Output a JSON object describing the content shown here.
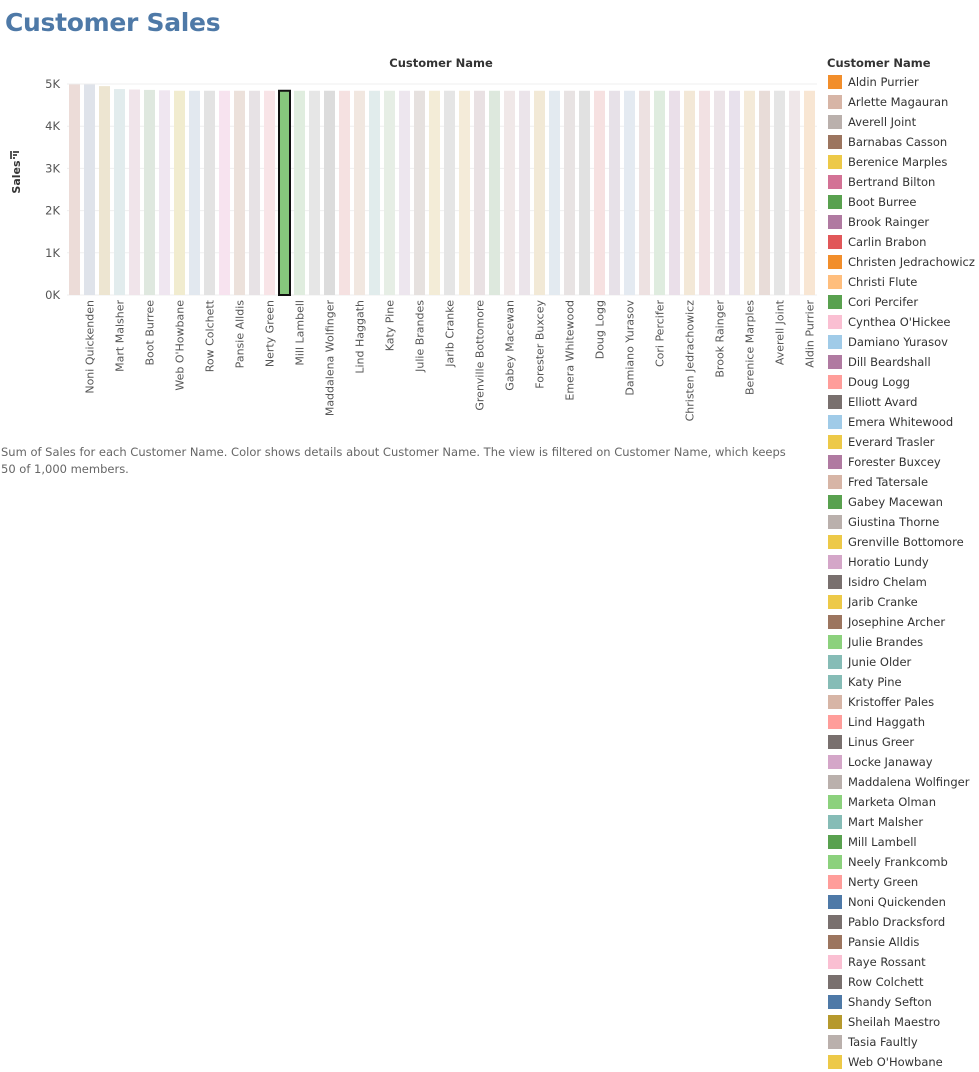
{
  "title": "Customer Sales",
  "caption": "Sum of Sales for each Customer Name.  Color shows details about Customer Name. The view is filtered on Customer Name, which keeps 50 of 1,000 members.",
  "chart_data": {
    "type": "bar",
    "title": "Customer Name",
    "xlabel": "",
    "ylabel": "Sales",
    "ylim": [
      0,
      5000
    ],
    "yticks": [
      "0K",
      "1K",
      "2K",
      "3K",
      "4K",
      "5K"
    ],
    "ytick_values": [
      0,
      1000,
      2000,
      3000,
      4000,
      5000
    ],
    "grid": true,
    "categories": [
      "",
      "Noni Quickenden",
      "",
      "Mart Malsher",
      "",
      "Boot Burree",
      "",
      "Web O'Howbane",
      "",
      "Row Colchett",
      "",
      "Pansie Alldis",
      "",
      "Nerty Green",
      "",
      "Mill Lambell",
      "",
      "Maddalena Wolfinger",
      "",
      "Lind Haggath",
      "",
      "Katy Pine",
      "",
      "Julie Brandes",
      "",
      "Jarib Cranke",
      "",
      "Grenville Bottomore",
      "",
      "Gabey Macewan",
      "",
      "Forester Buxcey",
      "",
      "Emera Whitewood",
      "",
      "Doug Logg",
      "",
      "Damiano Yurasov",
      "",
      "Cori Percifer",
      "",
      "Christen Jedrachowicz",
      "",
      "Brook Rainger",
      "",
      "Berenice Marples",
      "",
      "Averell Joint",
      "",
      "Aldin Purrier"
    ],
    "values": [
      4990,
      4990,
      4950,
      4880,
      4870,
      4860,
      4850,
      4840,
      4840,
      4840,
      4840,
      4840,
      4840,
      4840,
      4840,
      4840,
      4840,
      4840,
      4840,
      4840,
      4840,
      4840,
      4840,
      4840,
      4840,
      4840,
      4840,
      4840,
      4840,
      4840,
      4840,
      4840,
      4840,
      4840,
      4840,
      4840,
      4840,
      4840,
      4840,
      4840,
      4840,
      4840,
      4840,
      4840,
      4840,
      4840,
      4840,
      4840,
      4840,
      4840
    ],
    "colors": [
      "#ecdcd8",
      "#dfe3ea",
      "#ede5d1",
      "#e2eced",
      "#f0e4ea",
      "#dfe8df",
      "#efe6f0",
      "#f1eccf",
      "#e2e8ef",
      "#e3e3e3",
      "#f7e3ef",
      "#ece1db",
      "#e7e2e5",
      "#f8e4e7",
      "#86c77c",
      "#e0eddf",
      "#e6e6e6",
      "#dcdcdc",
      "#f5e1e1",
      "#f1e7e0",
      "#e1ecec",
      "#e6eee5",
      "#ede6ee",
      "#e6e1df",
      "#f3ecd7",
      "#e5e5e5",
      "#f4ebd9",
      "#e9e1e3",
      "#dde8dd",
      "#f0e8e8",
      "#ebe4ea",
      "#f2e9d6",
      "#e3eaf0",
      "#e8e3e3",
      "#e1e1e1",
      "#f6e1e1",
      "#e7e1e8",
      "#e4eaf1",
      "#ede1e1",
      "#dfecdf",
      "#eadfe9",
      "#f3e8d7",
      "#f2e1e3",
      "#ece4e8",
      "#e8e1ec",
      "#f4ead9",
      "#e8dcd8",
      "#e5e5e5",
      "#efe7e9",
      "#f8e6d3"
    ],
    "highlight_index": 14
  },
  "legend": {
    "title": "Customer Name",
    "items": [
      {
        "label": "Aldin Purrier",
        "color": "#f28e2b"
      },
      {
        "label": "Arlette Magauran",
        "color": "#d7b5a6"
      },
      {
        "label": "Averell Joint",
        "color": "#bab0ac"
      },
      {
        "label": "Barnabas Casson",
        "color": "#9c755f"
      },
      {
        "label": "Berenice Marples",
        "color": "#edc948"
      },
      {
        "label": "Bertrand Bilton",
        "color": "#d37295"
      },
      {
        "label": "Boot Burree",
        "color": "#59a14f"
      },
      {
        "label": "Brook Rainger",
        "color": "#b07aa1"
      },
      {
        "label": "Carlin Brabon",
        "color": "#e15759"
      },
      {
        "label": "Christen Jedrachowicz",
        "color": "#f28e2b"
      },
      {
        "label": "Christi Flute",
        "color": "#ffbe7d"
      },
      {
        "label": "Cori Percifer",
        "color": "#59a14f"
      },
      {
        "label": "Cynthea O'Hickee",
        "color": "#fabfd2"
      },
      {
        "label": "Damiano Yurasov",
        "color": "#a0cbe8"
      },
      {
        "label": "Dill Beardshall",
        "color": "#b07aa1"
      },
      {
        "label": "Doug Logg",
        "color": "#ff9d9a"
      },
      {
        "label": "Elliott Avard",
        "color": "#79706e"
      },
      {
        "label": "Emera Whitewood",
        "color": "#a0cbe8"
      },
      {
        "label": "Everard Trasler",
        "color": "#edc948"
      },
      {
        "label": "Forester Buxcey",
        "color": "#b07aa1"
      },
      {
        "label": "Fred Tatersale",
        "color": "#d7b5a6"
      },
      {
        "label": "Gabey Macewan",
        "color": "#59a14f"
      },
      {
        "label": "Giustina Thorne",
        "color": "#bab0ac"
      },
      {
        "label": "Grenville Bottomore",
        "color": "#edc948"
      },
      {
        "label": "Horatio Lundy",
        "color": "#d4a6c8"
      },
      {
        "label": "Isidro Chelam",
        "color": "#79706e"
      },
      {
        "label": "Jarib Cranke",
        "color": "#edc948"
      },
      {
        "label": "Josephine Archer",
        "color": "#9c755f"
      },
      {
        "label": "Julie Brandes",
        "color": "#8cd17d"
      },
      {
        "label": "Junie Older",
        "color": "#86bcb6"
      },
      {
        "label": "Katy Pine",
        "color": "#86bcb6"
      },
      {
        "label": "Kristoffer Pales",
        "color": "#d7b5a6"
      },
      {
        "label": "Lind Haggath",
        "color": "#ff9d9a"
      },
      {
        "label": "Linus Greer",
        "color": "#79706e"
      },
      {
        "label": "Locke Janaway",
        "color": "#d4a6c8"
      },
      {
        "label": "Maddalena Wolfinger",
        "color": "#bab0ac"
      },
      {
        "label": "Marketa Olman",
        "color": "#8cd17d"
      },
      {
        "label": "Mart Malsher",
        "color": "#86bcb6"
      },
      {
        "label": "Mill Lambell",
        "color": "#59a14f"
      },
      {
        "label": "Neely Frankcomb",
        "color": "#8cd17d"
      },
      {
        "label": "Nerty Green",
        "color": "#ff9d9a"
      },
      {
        "label": "Noni Quickenden",
        "color": "#4e79a7"
      },
      {
        "label": "Pablo Dracksford",
        "color": "#79706e"
      },
      {
        "label": "Pansie Alldis",
        "color": "#9c755f"
      },
      {
        "label": "Raye Rossant",
        "color": "#fabfd2"
      },
      {
        "label": "Row Colchett",
        "color": "#79706e"
      },
      {
        "label": "Shandy Sefton",
        "color": "#4e79a7"
      },
      {
        "label": "Sheilah Maestro",
        "color": "#b6992d"
      },
      {
        "label": "Tasia Faultly",
        "color": "#bab0ac"
      },
      {
        "label": "Web O'Howbane",
        "color": "#edc948"
      }
    ]
  },
  "sort_icon": "sort-descending-icon"
}
